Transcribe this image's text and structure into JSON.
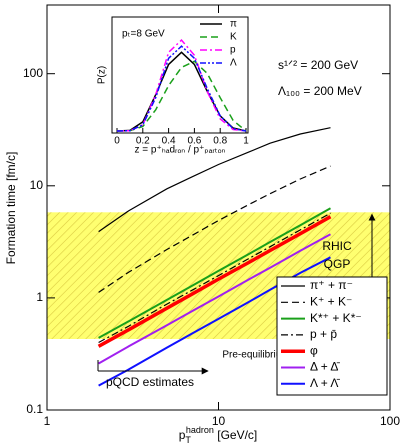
{
  "chart_data": [
    {
      "type": "line",
      "log_x": true,
      "log_y": true,
      "xlim": [
        1,
        100
      ],
      "xticks": [
        1,
        10,
        100
      ],
      "ylim": [
        0.1,
        410
      ],
      "yticks": [
        0.1,
        1,
        10,
        100
      ],
      "x_label": {
        "base": "p",
        "sub": "T",
        "sup": "hadron",
        "rest": " [GeV/c]"
      },
      "y_label": "Formation time [fm/c]",
      "annotations": {
        "energy": "s¹ᐟ² = 200 GeV",
        "lambda": "Λ₁₀₀ = 200 MeV",
        "rhic": "RHIC",
        "qgp": "QGP",
        "pre": "Pre-equilibrium",
        "pqcd": "pQCD estimates"
      },
      "band": {
        "ylim": [
          0.43,
          5.8
        ],
        "color": "#ffff70"
      },
      "x": [
        2,
        3,
        5,
        7,
        10,
        15,
        20,
        30,
        45
      ],
      "series": [
        {
          "name": "π⁺ + π⁻",
          "color": "#000000",
          "style": "solid",
          "width": 1.2,
          "values": [
            3.9,
            6,
            9.4,
            12,
            15.5,
            20,
            24,
            29,
            33
          ]
        },
        {
          "name": "K⁺ + K⁻",
          "color": "#000000",
          "style": "dashed",
          "width": 1.2,
          "values": [
            1.12,
            1.7,
            2.7,
            3.6,
            4.9,
            6.8,
            8.5,
            11.5,
            15
          ]
        },
        {
          "name": "K*⁺ + K*⁻",
          "color": "#1aa01a",
          "style": "solid",
          "width": 2,
          "values": [
            0.44,
            0.62,
            0.96,
            1.28,
            1.74,
            2.46,
            3.15,
            4.45,
            6.3
          ]
        },
        {
          "name": "p + p̄",
          "color": "#000000",
          "style": "dashdot",
          "width": 1.2,
          "values": [
            0.4,
            0.56,
            0.88,
            1.17,
            1.58,
            2.24,
            2.86,
            4.04,
            5.7
          ]
        },
        {
          "name": "φ",
          "color": "#ff0000",
          "style": "solid",
          "width": 3.5,
          "values": [
            0.37,
            0.52,
            0.81,
            1.08,
            1.47,
            2.07,
            2.65,
            3.74,
            5.3
          ]
        },
        {
          "name": "Δ + Δ̄",
          "color": "#a020f0",
          "style": "solid",
          "width": 2,
          "values": [
            0.26,
            0.37,
            0.57,
            0.76,
            1.03,
            1.46,
            1.86,
            2.63,
            3.7
          ]
        },
        {
          "name": "Λ + Λ̄",
          "color": "#1010ff",
          "style": "solid",
          "width": 2,
          "values": [
            0.165,
            0.23,
            0.36,
            0.48,
            0.65,
            0.92,
            1.18,
            1.67,
            2.3
          ]
        }
      ]
    },
    {
      "type": "line",
      "title": "pₜ=8 GeV",
      "xlim": [
        0,
        1
      ],
      "xticks": [
        0,
        0.2,
        0.4,
        0.6,
        0.8,
        1
      ],
      "ylim": [
        0,
        3.5
      ],
      "x_label": "z = p⁺ₕₐdᵣₒₙ / p⁺ₚₐᵣₜₒₙ",
      "y_label": "P(z)",
      "x": [
        0,
        0.1,
        0.2,
        0.3,
        0.4,
        0.5,
        0.6,
        0.7,
        0.8,
        0.9,
        1
      ],
      "series": [
        {
          "name": "π",
          "color": "#000000",
          "style": "solid",
          "values": [
            0,
            0.02,
            0.3,
            1.2,
            2.2,
            2.6,
            2.2,
            1.3,
            0.5,
            0.1,
            0
          ]
        },
        {
          "name": "K",
          "color": "#1aa01a",
          "style": "dashed",
          "values": [
            0,
            0.01,
            0.15,
            0.7,
            1.5,
            2.1,
            2.3,
            1.9,
            1.1,
            0.35,
            0
          ]
        },
        {
          "name": "p",
          "color": "#ff00ff",
          "style": "dashdot",
          "values": [
            0,
            0.01,
            0.2,
            1.2,
            2.6,
            3.0,
            2.5,
            1.3,
            0.4,
            0.05,
            0
          ]
        },
        {
          "name": "Λ",
          "color": "#1010ff",
          "style": "dashdotdot",
          "values": [
            0,
            0.01,
            0.2,
            1.1,
            2.4,
            2.8,
            2.4,
            1.4,
            0.5,
            0.08,
            0
          ]
        }
      ]
    }
  ]
}
